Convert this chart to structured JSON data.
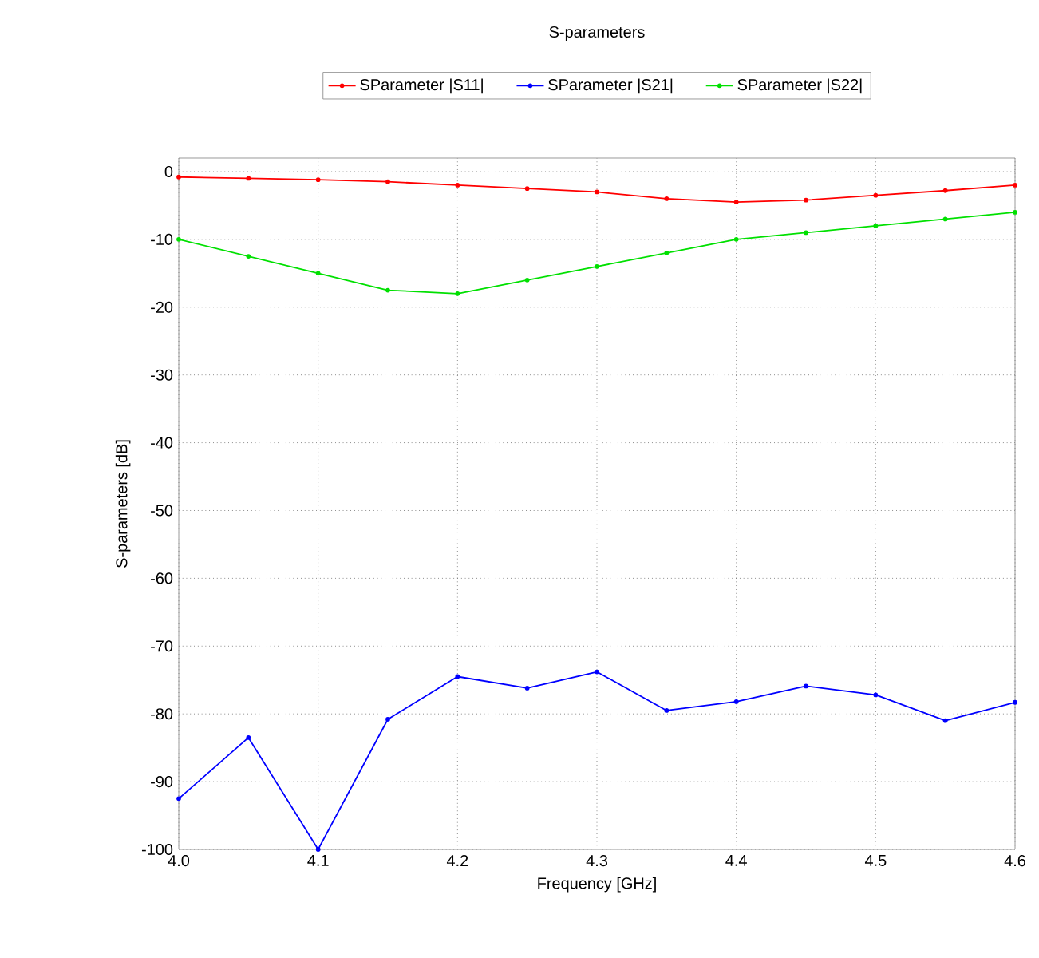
{
  "chart_data": {
    "type": "line",
    "title": "S-parameters",
    "xlabel": "Frequency [GHz]",
    "ylabel": "S-parameters [dB]",
    "x": [
      4.0,
      4.05,
      4.1,
      4.15,
      4.2,
      4.25,
      4.3,
      4.35,
      4.4,
      4.45,
      4.5,
      4.55,
      4.6
    ],
    "series": [
      {
        "name": "SParameter |S11|",
        "color": "#ff0000",
        "values": [
          -0.8,
          -1,
          -1.2,
          -1.5,
          -2,
          -2.5,
          -3,
          -4,
          -4.5,
          -4.2,
          -3.5,
          -2.8,
          -2
        ]
      },
      {
        "name": "SParameter |S21|",
        "color": "#0000ff",
        "values": [
          -92.5,
          -83.5,
          -100,
          -80.8,
          -74.5,
          -76.2,
          -73.8,
          -79.5,
          -78.2,
          -75.9,
          -77.2,
          -81,
          -78.3
        ]
      },
      {
        "name": "SParameter |S22|",
        "color": "#00e000",
        "values": [
          -10,
          -12.5,
          -15,
          -17.5,
          -18,
          -16,
          -14,
          -12,
          -10,
          -9,
          -8,
          -7,
          -6
        ]
      }
    ],
    "xlim": [
      4.0,
      4.6
    ],
    "ylim": [
      -100,
      2
    ],
    "xticks": [
      {
        "value": 4.0,
        "label": "4.0"
      },
      4.1,
      4.2,
      4.3,
      4.4,
      4.5,
      4.6
    ],
    "yticks": [
      -100,
      -90,
      -80,
      -70,
      -60,
      -50,
      -40,
      -30,
      -20,
      -10,
      0
    ],
    "grid": true,
    "legend": "top",
    "marker": "circle",
    "line_style": "solid"
  }
}
